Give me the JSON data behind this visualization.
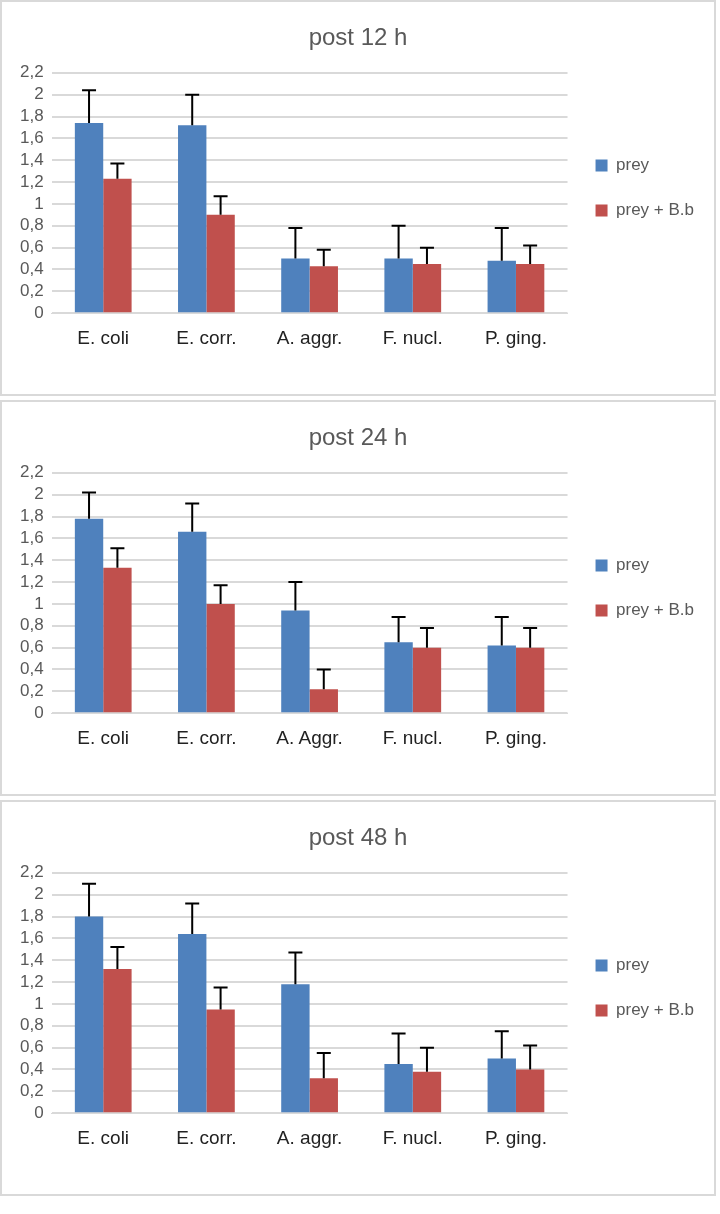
{
  "chart_data": [
    {
      "type": "bar",
      "title": "post 12 h",
      "categories": [
        "E. coli",
        "E. corr.",
        "A. aggr.",
        "F. nucl.",
        "P. ging."
      ],
      "legend": "right",
      "grid": "y",
      "ylim": [
        0,
        2.2
      ],
      "yticks": [
        0,
        {
          "value": 0.2,
          "label": "0,2"
        },
        {
          "value": 0.4,
          "label": "0,4"
        },
        {
          "value": 0.6,
          "label": "0,6"
        },
        {
          "value": 0.8,
          "label": "0,8"
        },
        1,
        {
          "value": 1.2,
          "label": "1,2"
        },
        {
          "value": 1.4,
          "label": "1,4"
        },
        {
          "value": 1.6,
          "label": "1,6"
        },
        {
          "value": 1.8,
          "label": "1,8"
        },
        2,
        {
          "value": 2.2,
          "label": "2,2"
        }
      ],
      "series": [
        {
          "name": "prey",
          "color": "#4f81bd",
          "values": [
            1.74,
            1.72,
            0.5,
            0.5,
            0.48
          ],
          "errors": [
            [
              1.74,
              2.04
            ],
            [
              1.72,
              2.0
            ],
            [
              0.5,
              0.78
            ],
            [
              0.5,
              0.8
            ],
            [
              0.48,
              0.78
            ]
          ]
        },
        {
          "name": "prey + B.b",
          "color": "#c0504d",
          "values": [
            1.23,
            0.9,
            0.43,
            0.45,
            0.45
          ],
          "errors": [
            [
              1.23,
              1.37
            ],
            [
              0.9,
              1.07
            ],
            [
              0.43,
              0.58
            ],
            [
              0.45,
              0.6
            ],
            [
              0.45,
              0.62
            ]
          ]
        }
      ]
    },
    {
      "type": "bar",
      "title": "post 24 h",
      "categories": [
        "E. coli",
        "E. corr.",
        "A. Aggr.",
        "F. nucl.",
        "P. ging."
      ],
      "legend": "right",
      "grid": "y",
      "ylim": [
        0,
        2.2
      ],
      "yticks": [
        0,
        {
          "value": 0.2,
          "label": "0,2"
        },
        {
          "value": 0.4,
          "label": "0,4"
        },
        {
          "value": 0.6,
          "label": "0,6"
        },
        {
          "value": 0.8,
          "label": "0,8"
        },
        1,
        {
          "value": 1.2,
          "label": "1,2"
        },
        {
          "value": 1.4,
          "label": "1,4"
        },
        {
          "value": 1.6,
          "label": "1,6"
        },
        {
          "value": 1.8,
          "label": "1,8"
        },
        2,
        {
          "value": 2.2,
          "label": "2,2"
        }
      ],
      "series": [
        {
          "name": "prey",
          "color": "#4f81bd",
          "values": [
            1.78,
            1.66,
            0.94,
            0.65,
            0.62
          ],
          "errors": [
            [
              1.78,
              2.02
            ],
            [
              1.66,
              1.92
            ],
            [
              0.94,
              1.2
            ],
            [
              0.65,
              0.88
            ],
            [
              0.62,
              0.88
            ]
          ]
        },
        {
          "name": "prey + B.b",
          "color": "#c0504d",
          "values": [
            1.33,
            1.0,
            0.22,
            0.6,
            0.6
          ],
          "errors": [
            [
              1.33,
              1.51
            ],
            [
              1.0,
              1.17
            ],
            [
              0.22,
              0.4
            ],
            [
              0.6,
              0.78
            ],
            [
              0.6,
              0.78
            ]
          ]
        }
      ]
    },
    {
      "type": "bar",
      "title": "post 48 h",
      "categories": [
        "E. coli",
        "E. corr.",
        "A. aggr.",
        "F. nucl.",
        "P. ging."
      ],
      "legend": "right",
      "grid": "y",
      "ylim": [
        0,
        2.2
      ],
      "yticks": [
        0,
        {
          "value": 0.2,
          "label": "0,2"
        },
        {
          "value": 0.4,
          "label": "0,4"
        },
        {
          "value": 0.6,
          "label": "0,6"
        },
        {
          "value": 0.8,
          "label": "0,8"
        },
        1,
        {
          "value": 1.2,
          "label": "1,2"
        },
        {
          "value": 1.4,
          "label": "1,4"
        },
        {
          "value": 1.6,
          "label": "1,6"
        },
        {
          "value": 1.8,
          "label": "1,8"
        },
        2,
        {
          "value": 2.2,
          "label": "2,2"
        }
      ],
      "series": [
        {
          "name": "prey",
          "color": "#4f81bd",
          "values": [
            1.8,
            1.64,
            1.18,
            0.45,
            0.5
          ],
          "errors": [
            [
              1.8,
              2.1
            ],
            [
              1.64,
              1.92
            ],
            [
              1.18,
              1.47
            ],
            [
              0.45,
              0.73
            ],
            [
              0.5,
              0.75
            ]
          ]
        },
        {
          "name": "prey + B.b",
          "color": "#c0504d",
          "values": [
            1.32,
            0.95,
            0.32,
            0.38,
            0.4
          ],
          "errors": [
            [
              1.32,
              1.52
            ],
            [
              0.95,
              1.15
            ],
            [
              0.32,
              0.55
            ],
            [
              0.38,
              0.6
            ],
            [
              0.4,
              0.62
            ]
          ]
        }
      ]
    }
  ]
}
